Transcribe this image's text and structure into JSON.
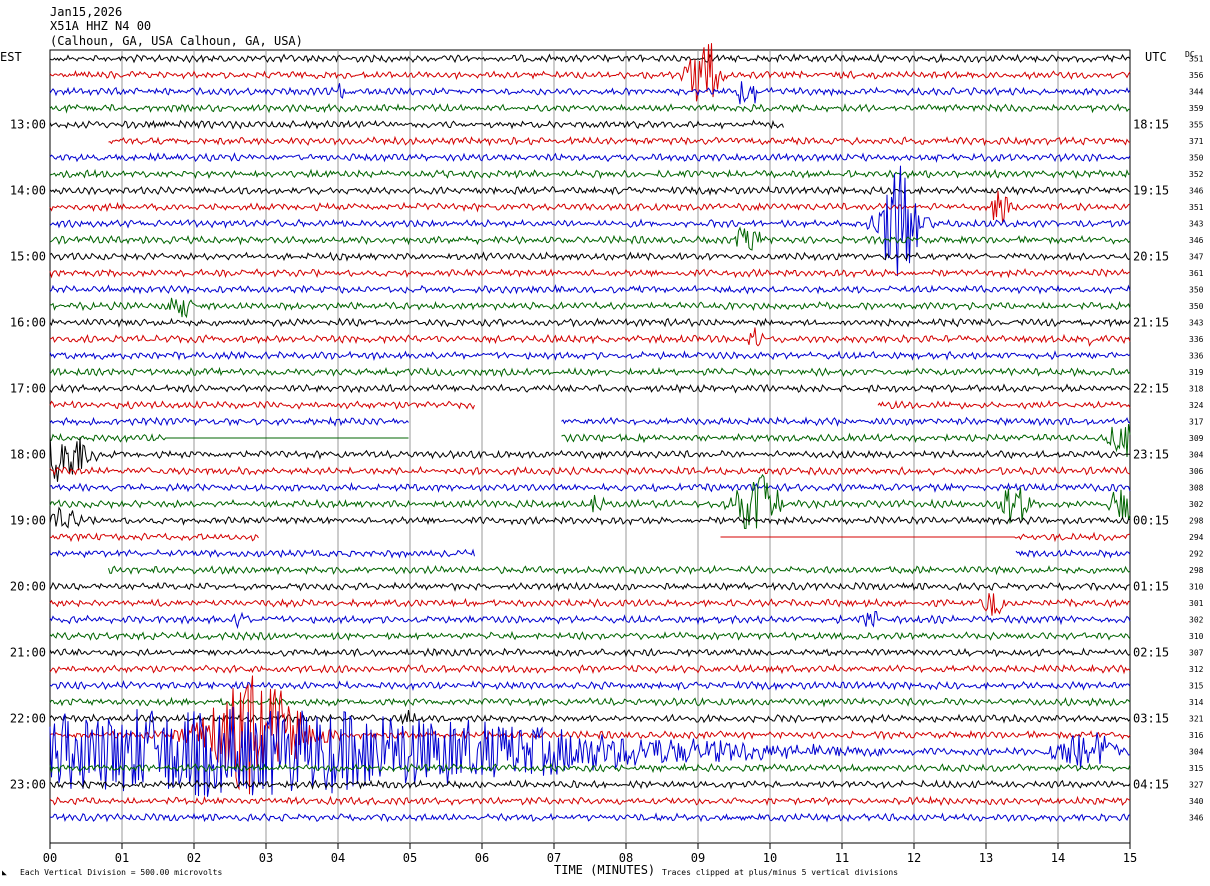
{
  "header": {
    "date": "Jan15,2026",
    "station": "X51A HHZ N4 00",
    "location": "(Calhoun, GA, USA Calhoun, GA, USA)"
  },
  "left_zone": "EST",
  "right_zone": "UTC",
  "dc_header": "DC",
  "footer": {
    "scale": "Each Vertical Division =  500.00 microvolts",
    "xlabel": "TIME (MINUTES)",
    "clip": "Traces clipped at plus/minus 5 vertical divisions"
  },
  "colors": {
    "trace_cycle": [
      "#000000",
      "#d40000",
      "#0000d0",
      "#006400"
    ],
    "grid": "#999999"
  },
  "chart_data": {
    "type": "line",
    "xlabel": "TIME (MINUTES)",
    "xlim": [
      0,
      15
    ],
    "x_ticks": [
      "00",
      "01",
      "02",
      "03",
      "04",
      "05",
      "06",
      "07",
      "08",
      "09",
      "10",
      "11",
      "12",
      "13",
      "14",
      "15"
    ],
    "left_hour_labels": [
      {
        "row": 4,
        "label": "13:00"
      },
      {
        "row": 8,
        "label": "14:00"
      },
      {
        "row": 12,
        "label": "15:00"
      },
      {
        "row": 16,
        "label": "16:00"
      },
      {
        "row": 20,
        "label": "17:00"
      },
      {
        "row": 24,
        "label": "18:00"
      },
      {
        "row": 28,
        "label": "19:00"
      },
      {
        "row": 32,
        "label": "20:00"
      },
      {
        "row": 36,
        "label": "21:00"
      },
      {
        "row": 40,
        "label": "22:00"
      },
      {
        "row": 44,
        "label": "23:00"
      }
    ],
    "right_hour_labels": [
      {
        "row": 4,
        "label": "18:15"
      },
      {
        "row": 8,
        "label": "19:15"
      },
      {
        "row": 12,
        "label": "20:15"
      },
      {
        "row": 16,
        "label": "21:15"
      },
      {
        "row": 20,
        "label": "22:15"
      },
      {
        "row": 24,
        "label": "23:15"
      },
      {
        "row": 28,
        "label": "00:15"
      },
      {
        "row": 32,
        "label": "01:15"
      },
      {
        "row": 36,
        "label": "02:15"
      },
      {
        "row": 40,
        "label": "03:15"
      },
      {
        "row": 44,
        "label": "04:15"
      }
    ],
    "dc_values": [
      "351",
      "356",
      "344",
      "359",
      "355",
      "371",
      "350",
      "352",
      "346",
      "351",
      "343",
      "346",
      "347",
      "361",
      "350",
      "350",
      "343",
      "336",
      "336",
      "319",
      "318",
      "324",
      "317",
      "309",
      "304",
      "306",
      "308",
      "302",
      "298",
      "294",
      "292",
      "298",
      "310",
      "301",
      "302",
      "310",
      "307",
      "312",
      "315",
      "314",
      "321",
      "316",
      "304",
      "315",
      "327",
      "340",
      "346"
    ],
    "gaps": [
      {
        "row": 4,
        "from": 10.2,
        "to": 15
      },
      {
        "row": 5,
        "from": 0,
        "to": 0.8
      },
      {
        "row": 21,
        "from": 5.9,
        "to": 11.5
      },
      {
        "row": 22,
        "from": 5.0,
        "to": 7.1
      },
      {
        "row": 23,
        "from": 5.0,
        "to": 7.1
      },
      {
        "row": 29,
        "from": 2.9,
        "to": 9.3
      },
      {
        "row": 30,
        "from": 5.9,
        "to": 13.4
      },
      {
        "row": 31,
        "from": 0,
        "to": 0.8
      }
    ],
    "flat_segments": [
      {
        "row": 23,
        "from": 1.6,
        "to": 5.0
      },
      {
        "row": 29,
        "from": 9.3,
        "to": 13.4
      }
    ],
    "events": [
      {
        "row": 1,
        "x": 9.1,
        "amp": 4.5,
        "dur": 0.35
      },
      {
        "row": 2,
        "x": 4.05,
        "amp": 1.2,
        "dur": 0.1
      },
      {
        "row": 2,
        "x": 9.7,
        "amp": 1.5,
        "dur": 0.35
      },
      {
        "row": 9,
        "x": 13.2,
        "amp": 2.2,
        "dur": 0.2
      },
      {
        "row": 10,
        "x": 11.8,
        "amp": 6.0,
        "dur": 0.5
      },
      {
        "row": 11,
        "x": 9.7,
        "amp": 1.5,
        "dur": 0.3
      },
      {
        "row": 15,
        "x": 1.8,
        "amp": 1.2,
        "dur": 0.3
      },
      {
        "row": 17,
        "x": 9.8,
        "amp": 1.3,
        "dur": 0.2
      },
      {
        "row": 17,
        "x": 14.45,
        "amp": 1.3,
        "dur": 0.08
      },
      {
        "row": 23,
        "x": 14.9,
        "amp": 2.5,
        "dur": 0.3
      },
      {
        "row": 24,
        "x": 0.2,
        "amp": 3.0,
        "dur": 0.6
      },
      {
        "row": 27,
        "x": 7.6,
        "amp": 1.3,
        "dur": 0.2
      },
      {
        "row": 27,
        "x": 9.8,
        "amp": 3.5,
        "dur": 0.5
      },
      {
        "row": 27,
        "x": 13.4,
        "amp": 3.0,
        "dur": 0.3
      },
      {
        "row": 27,
        "x": 14.9,
        "amp": 2.0,
        "dur": 0.3
      },
      {
        "row": 28,
        "x": 0.2,
        "amp": 1.5,
        "dur": 0.3
      },
      {
        "row": 33,
        "x": 13.1,
        "amp": 1.5,
        "dur": 0.2
      },
      {
        "row": 34,
        "x": 2.65,
        "amp": 1.0,
        "dur": 0.15
      },
      {
        "row": 34,
        "x": 11.4,
        "amp": 1.0,
        "dur": 0.2
      },
      {
        "row": 40,
        "x": 5.0,
        "amp": 1.0,
        "dur": 0.2
      },
      {
        "row": 41,
        "x": 2.85,
        "amp": 6.0,
        "dur": 1.2
      },
      {
        "row": 42,
        "x": 2.5,
        "amp": 4.5,
        "dur": 9.5
      },
      {
        "row": 42,
        "x": 14.4,
        "amp": 2.0,
        "dur": 0.8
      }
    ]
  }
}
